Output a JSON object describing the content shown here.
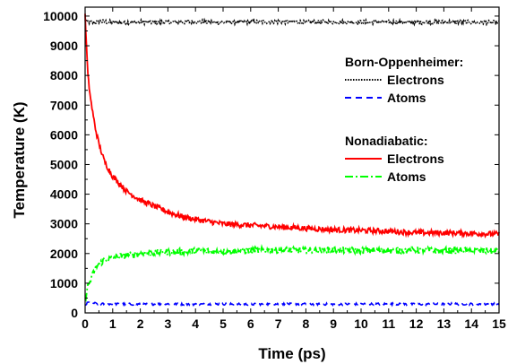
{
  "chart_data": {
    "type": "line",
    "xlabel": "Time (ps)",
    "ylabel": "Temperature (K)",
    "xlim": [
      0,
      15
    ],
    "ylim": [
      0,
      10300
    ],
    "x_ticks": [
      0,
      1,
      2,
      3,
      4,
      5,
      6,
      7,
      8,
      9,
      10,
      11,
      12,
      13,
      14,
      15
    ],
    "y_ticks": [
      0,
      1000,
      2000,
      3000,
      4000,
      5000,
      6000,
      7000,
      8000,
      9000,
      10000
    ],
    "grid": false,
    "legend": {
      "placement": "top-right",
      "groups": [
        {
          "heading": "Born-Oppenheimer:",
          "entries": [
            "Electrons",
            "Atoms"
          ]
        },
        {
          "heading": "Nonadiabatic:",
          "entries": [
            "Electrons",
            "Atoms"
          ]
        }
      ]
    },
    "series": [
      {
        "name": "Electrons",
        "group": "Born-Oppenheimer",
        "color": "#000000",
        "style": "dotted",
        "x": [
          0,
          0.1,
          0.3,
          0.5,
          1,
          2,
          3,
          4,
          5,
          6,
          7,
          8,
          9,
          10,
          11,
          12,
          13,
          14,
          15
        ],
        "y": [
          9850,
          9800,
          9780,
          9820,
          9790,
          9800,
          9790,
          9810,
          9790,
          9800,
          9810,
          9790,
          9800,
          9790,
          9800,
          9790,
          9800,
          9790,
          9780
        ]
      },
      {
        "name": "Atoms",
        "group": "Born-Oppenheimer",
        "color": "#0000ff",
        "style": "dashed",
        "x": [
          0,
          0.1,
          0.3,
          0.5,
          1,
          2,
          3,
          4,
          5,
          6,
          7,
          8,
          9,
          10,
          11,
          12,
          13,
          14,
          15
        ],
        "y": [
          250,
          350,
          330,
          300,
          300,
          290,
          300,
          290,
          300,
          290,
          300,
          300,
          290,
          300,
          300,
          290,
          300,
          300,
          300
        ]
      },
      {
        "name": "Electrons",
        "group": "Nonadiabatic",
        "color": "#ff0000",
        "style": "solid",
        "x": [
          0,
          0.05,
          0.1,
          0.2,
          0.3,
          0.4,
          0.5,
          0.7,
          1,
          1.5,
          2,
          2.5,
          3,
          3.5,
          4,
          5,
          6,
          7,
          8,
          9,
          10,
          11,
          12,
          13,
          14,
          15
        ],
        "y": [
          10000,
          9000,
          8000,
          7200,
          6600,
          6100,
          5700,
          5100,
          4600,
          4100,
          3800,
          3600,
          3400,
          3250,
          3150,
          3000,
          2950,
          2900,
          2850,
          2800,
          2780,
          2750,
          2700,
          2700,
          2680,
          2650
        ]
      },
      {
        "name": "Atoms",
        "group": "Nonadiabatic",
        "color": "#00ff00",
        "style": "dash-dot",
        "x": [
          0,
          0.05,
          0.1,
          0.2,
          0.3,
          0.4,
          0.5,
          0.7,
          1,
          1.5,
          2,
          2.5,
          3,
          4,
          5,
          6,
          7,
          8,
          9,
          10,
          11,
          12,
          13,
          14,
          15
        ],
        "y": [
          400,
          700,
          900,
          1100,
          1350,
          1550,
          1650,
          1780,
          1850,
          1950,
          2000,
          2030,
          2050,
          2080,
          2080,
          2100,
          2120,
          2100,
          2120,
          2100,
          2100,
          2120,
          2100,
          2100,
          2080
        ]
      }
    ]
  }
}
